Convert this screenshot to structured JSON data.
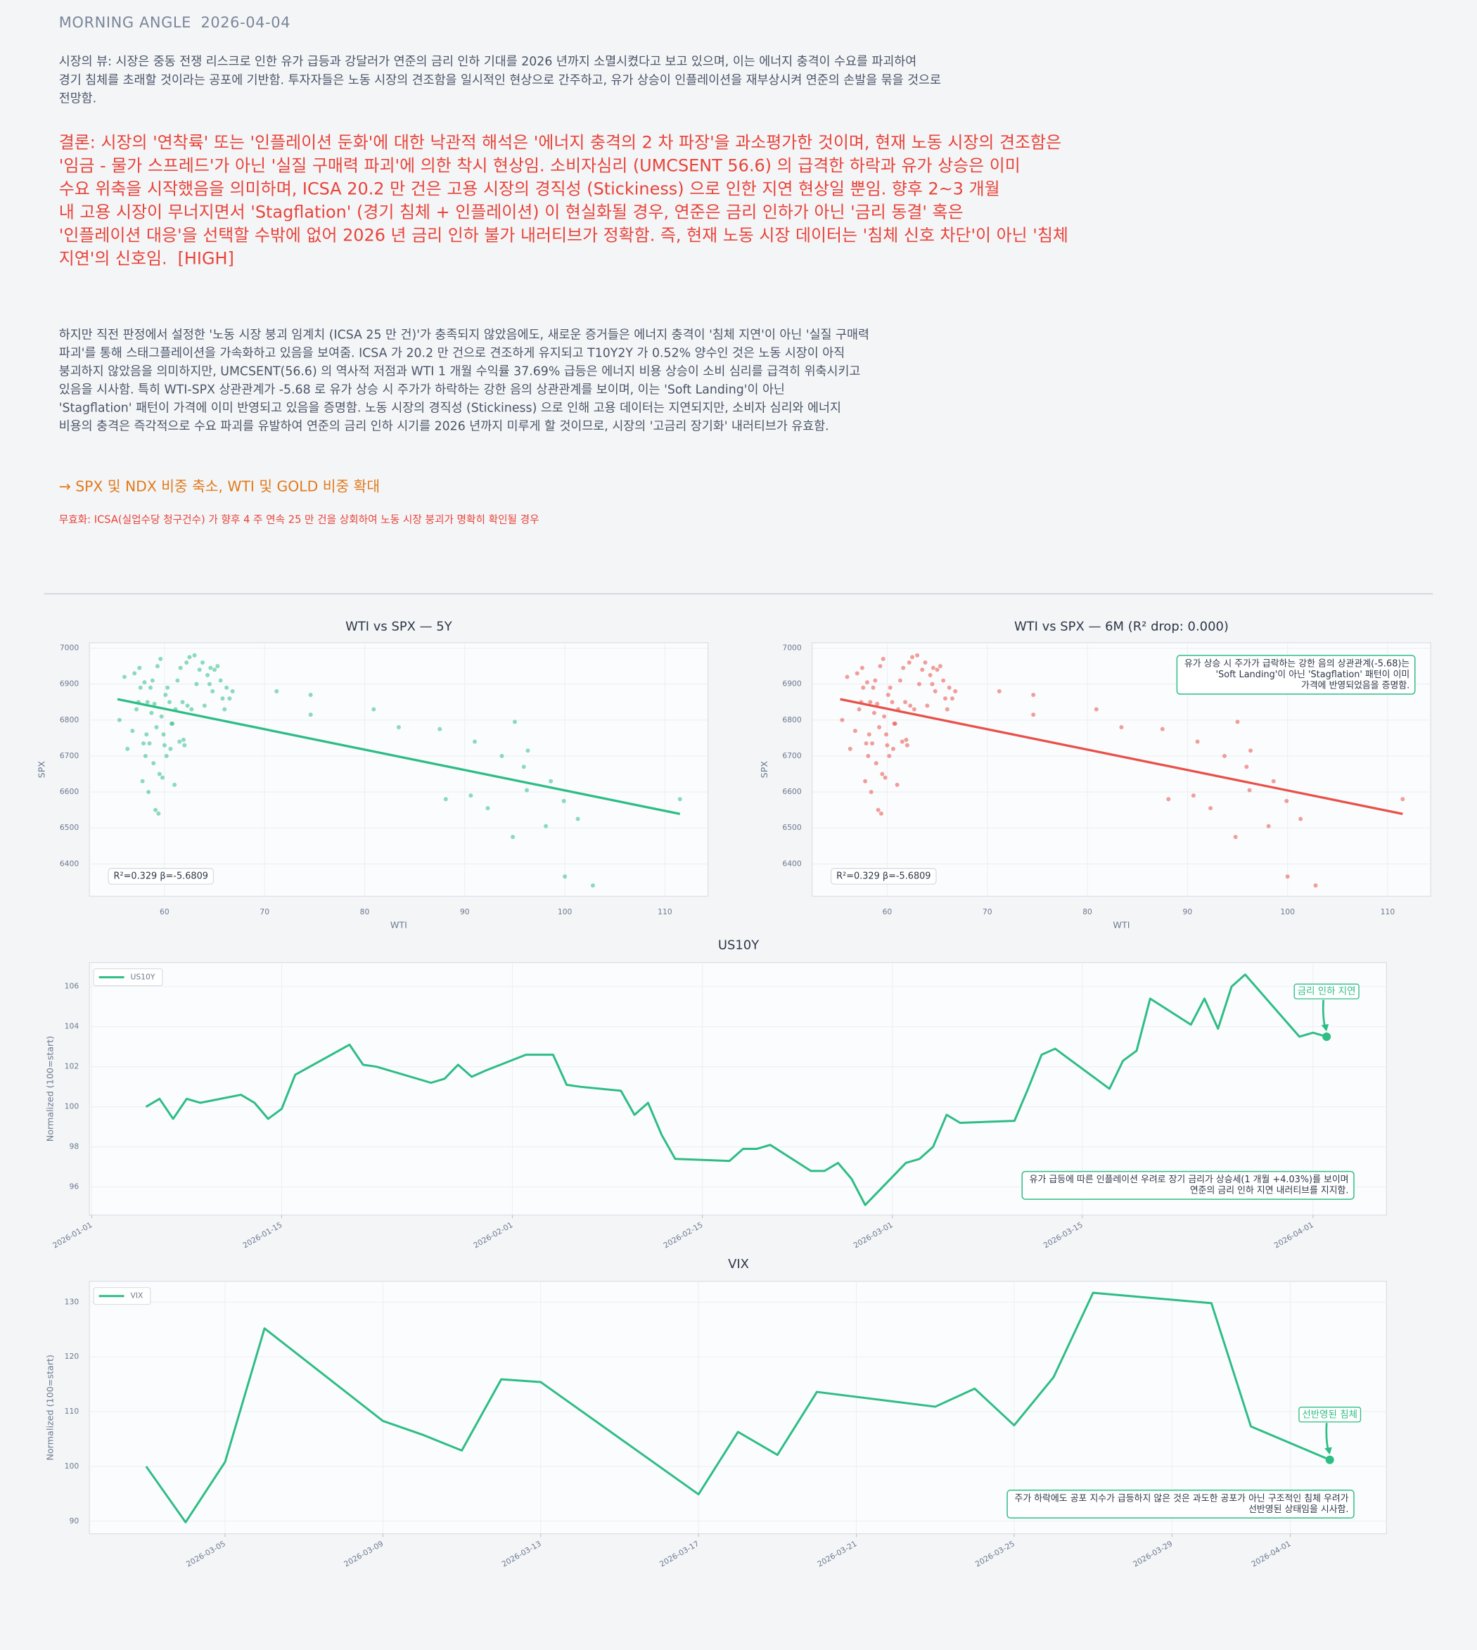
{
  "header": {
    "title": "MORNING ANGLE",
    "date": "2026-04-04"
  },
  "view": [
    "시장의 뷰: 시장은 중동 전쟁 리스크로 인한 유가 급등과 강달러가 연준의 금리 인하 기대를 2026 년까지 소멸시켰다고 보고 있으며, 이는 에너지 충격이 수요를 파괴하여",
    "경기 침체를 초래할 것이라는 공포에 기반함. 투자자들은 노동 시장의 견조함을 일시적인 현상으로 간주하고, 유가 상승이 인플레이션을 재부상시켜 연준의 손발을 묶을 것으로",
    "전망함."
  ],
  "conclusion": {
    "lines": [
      "결론: 시장의 '연착륙' 또는 '인플레이션 둔화'에 대한 낙관적 해석은 '에너지 충격의 2 차 파장'을 과소평가한 것이며, 현재 노동 시장의 견조함은",
      "'임금 - 물가 스프레드'가 아닌 '실질 구매력 파괴'에 의한 착시 현상임. 소비자심리 (UMCSENT 56.6) 의 급격한 하락과 유가 상승은 이미",
      "수요 위축을 시작했음을 의미하며, ICSA 20.2 만 건은 고용 시장의 경직성 (Stickiness) 으로 인한 지연 현상일 뿐임. 향후 2~3 개월",
      "내 고용 시장이 무너지면서 'Stagflation' (경기 침체 + 인플레이션) 이 현실화될 경우, 연준은 금리 인하가 아닌 '금리 동결' 혹은",
      "'인플레이션 대응'을 선택할 수밖에 없어 2026 년 금리 인하 불가 내러티브가 정확함. 즉, 현재 노동 시장 데이터는 '침체 신호 차단'이 아닌 '침체",
      "지연'의 신호임."
    ],
    "confidence": "[HIGH]"
  },
  "analysis": [
    "하지만 직전 판정에서 설정한 '노동 시장 붕괴 임계치 (ICSA 25 만 건)'가 충족되지 않았음에도, 새로운 증거들은 에너지 충격이 '침체 지연'이 아닌 '실질 구매력",
    "파괴'를 통해 스태그플레이션을 가속화하고 있음을 보여줌. ICSA 가 20.2 만 건으로 견조하게 유지되고 T10Y2Y 가 0.52% 양수인 것은 노동 시장이 아직",
    "붕괴하지 않았음을 의미하지만, UMCSENT(56.6) 의 역사적 저점과 WTI 1 개월 수익률 37.69% 급등은 에너지 비용 상승이 소비 심리를 급격히 위축시키고",
    "있음을 시사함. 특히 WTI-SPX 상관관계가 -5.68 로 유가 상승 시 주가가 하락하는 강한 음의 상관관계를 보이며, 이는 'Soft Landing'이 아닌",
    "'Stagflation' 패턴이 가격에 이미 반영되고 있음을 증명함. 노동 시장의 경직성 (Stickiness) 으로 인해 고용 데이터는 지연되지만, 소비자 심리와 에너지",
    "비용의 충격은 즉각적으로 수요 파괴를 유발하여 연준의 금리 인하 시기를 2026 년까지 미루게 할 것이므로, 시장의 '고금리 장기화' 내러티브가 유효함."
  ],
  "action": "→ SPX 및 NDX 비중 축소, WTI 및 GOLD 비중 확대",
  "invalidation": "무효화: ICSA(실업수당 청구건수) 가 향후 4 주 연속 25 만 건을 상회하여 노동 시장 붕괴가 명확히 확인될 경우",
  "chart_data": [
    {
      "type": "scatter",
      "title": "WTI vs SPX — 5Y",
      "xlabel": "WTI",
      "ylabel": "SPX",
      "xlim": [
        52.5,
        114.3
      ],
      "ylim": [
        6310,
        7015
      ],
      "xticks": [
        60,
        70,
        80,
        90,
        100,
        110
      ],
      "yticks": [
        6400,
        6500,
        6600,
        6700,
        6800,
        6900,
        7000
      ],
      "grid": true,
      "color": "#2dbd85",
      "x": [
        55.5,
        56,
        56.3,
        56.8,
        57,
        57.2,
        57.5,
        57.6,
        57.8,
        57.9,
        58,
        58.1,
        58.3,
        58.4,
        58.5,
        58.6,
        58.7,
        58.8,
        58.9,
        59,
        59.1,
        59.2,
        59.3,
        59.4,
        59.5,
        59.6,
        59.7,
        59.8,
        60,
        60.1,
        60.3,
        60.5,
        60.6,
        60.8,
        61,
        61.1,
        61.3,
        61.5,
        61.6,
        61.8,
        62,
        62.2,
        62.5,
        62.7,
        63,
        63.2,
        63.5,
        63.8,
        64,
        64.3,
        64.6,
        64.8,
        65,
        65.3,
        65.6,
        65.8,
        66,
        66.2,
        66.5,
        66.8,
        60.2,
        58.2,
        59.9,
        61.9,
        62.3,
        57.4,
        64.5,
        60.7,
        71.2,
        74.6,
        74.6,
        80.9,
        83.4,
        87.5,
        88.1,
        90.6,
        91,
        92.3,
        93.7,
        94.8,
        95,
        95.9,
        96.2,
        96.3,
        98.1,
        98.6,
        99.9,
        100,
        101.3,
        102.8,
        111.5
      ],
      "y": [
        6800,
        6920,
        6720,
        6770,
        6930,
        6830,
        6945,
        6890,
        6630,
        6735,
        6905,
        6700,
        6850,
        6600,
        6735,
        6890,
        6820,
        6910,
        6680,
        6845,
        6550,
        6780,
        6950,
        6540,
        6650,
        6970,
        6810,
        6640,
        6730,
        6870,
        6890,
        6850,
        6720,
        6790,
        6620,
        6830,
        6910,
        6740,
        6945,
        6850,
        6730,
        6960,
        6975,
        6830,
        6980,
        6900,
        6940,
        6960,
        6840,
        6925,
        6945,
        6880,
        6940,
        6950,
        6910,
        6860,
        6830,
        6890,
        6860,
        6880,
        6700,
        6760,
        6760,
        6745,
        6840,
        6850,
        6900,
        6790,
        6880,
        6870,
        6815,
        6830,
        6780,
        6775,
        6580,
        6590,
        6740,
        6555,
        6700,
        6475,
        6795,
        6670,
        6605,
        6715,
        6505,
        6630,
        6575,
        6365,
        6525,
        6340,
        6580
      ],
      "trend_x": [
        55.3,
        111.5
      ],
      "trend_y": [
        6858,
        6539
      ],
      "stat_label": "R²=0.329  β=-5.6809"
    },
    {
      "type": "scatter",
      "title": "WTI vs SPX — 6M (R² drop: 0.000)",
      "xlabel": "WTI",
      "ylabel": "SPX",
      "xlim": [
        52.5,
        114.3
      ],
      "ylim": [
        6310,
        7015
      ],
      "xticks": [
        60,
        70,
        80,
        90,
        100,
        110
      ],
      "yticks": [
        6400,
        6500,
        6600,
        6700,
        6800,
        6900,
        7000
      ],
      "grid": true,
      "color": "#e8514a",
      "x": [
        55.5,
        56,
        56.3,
        56.8,
        57,
        57.2,
        57.5,
        57.6,
        57.8,
        57.9,
        58,
        58.1,
        58.3,
        58.4,
        58.5,
        58.6,
        58.7,
        58.8,
        58.9,
        59,
        59.1,
        59.2,
        59.3,
        59.4,
        59.5,
        59.6,
        59.7,
        59.8,
        60,
        60.1,
        60.3,
        60.5,
        60.6,
        60.8,
        61,
        61.1,
        61.3,
        61.5,
        61.6,
        61.8,
        62,
        62.2,
        62.5,
        62.7,
        63,
        63.2,
        63.5,
        63.8,
        64,
        64.3,
        64.6,
        64.8,
        65,
        65.3,
        65.6,
        65.8,
        66,
        66.2,
        66.5,
        66.8,
        60.2,
        58.2,
        59.9,
        61.9,
        62.3,
        57.4,
        64.5,
        60.7,
        71.2,
        74.6,
        74.6,
        80.9,
        83.4,
        87.5,
        88.1,
        90.6,
        91,
        92.3,
        93.7,
        94.8,
        95,
        95.9,
        96.2,
        96.3,
        98.1,
        98.6,
        99.9,
        100,
        101.3,
        102.8,
        111.5
      ],
      "y": [
        6800,
        6920,
        6720,
        6770,
        6930,
        6830,
        6945,
        6890,
        6630,
        6735,
        6905,
        6700,
        6850,
        6600,
        6735,
        6890,
        6820,
        6910,
        6680,
        6845,
        6550,
        6780,
        6950,
        6540,
        6650,
        6970,
        6810,
        6640,
        6730,
        6870,
        6890,
        6850,
        6720,
        6790,
        6620,
        6830,
        6910,
        6740,
        6945,
        6850,
        6730,
        6960,
        6975,
        6830,
        6980,
        6900,
        6940,
        6960,
        6840,
        6925,
        6945,
        6880,
        6940,
        6950,
        6910,
        6860,
        6830,
        6890,
        6860,
        6880,
        6700,
        6760,
        6760,
        6745,
        6840,
        6850,
        6900,
        6790,
        6880,
        6870,
        6815,
        6830,
        6780,
        6775,
        6580,
        6590,
        6740,
        6555,
        6700,
        6475,
        6795,
        6670,
        6605,
        6715,
        6505,
        6630,
        6575,
        6365,
        6525,
        6340,
        6580
      ],
      "trend_x": [
        55.3,
        111.5
      ],
      "trend_y": [
        6858,
        6539
      ],
      "stat_label": "R²=0.329  β=-5.6809",
      "note": [
        "유가 상승 시 주가가 급락하는 강한 음의 상관관계(-5.68)는",
        "'Soft Landing'이 아닌 'Stagflation' 패턴이 이미",
        "가격에 반영되었음을 증명함."
      ]
    },
    {
      "type": "line",
      "title": "US10Y",
      "ylabel": "Normalized (100=start)",
      "xlim": [
        "2025-12-31T20:00:00Z",
        "2026-04-06T10:00:00Z"
      ],
      "xticks": [
        "2026-01-01",
        "2026-01-15",
        "2026-02-01",
        "2026-02-15",
        "2026-03-01",
        "2026-03-15",
        "2026-04-01"
      ],
      "ylim": [
        94.6,
        107.2
      ],
      "yticks": [
        96,
        98,
        100,
        102,
        104,
        106
      ],
      "grid": true,
      "legend": "upper-left",
      "x": [
        "2026-01-05",
        "2026-01-06",
        "2026-01-07",
        "2026-01-08",
        "2026-01-09",
        "2026-01-12",
        "2026-01-13",
        "2026-01-14",
        "2026-01-15",
        "2026-01-16",
        "2026-01-20",
        "2026-01-21",
        "2026-01-22",
        "2026-01-23",
        "2026-01-26",
        "2026-01-27",
        "2026-01-28",
        "2026-01-29",
        "2026-01-30",
        "2026-02-02",
        "2026-02-03",
        "2026-02-04",
        "2026-02-05",
        "2026-02-06",
        "2026-02-09",
        "2026-02-10",
        "2026-02-11",
        "2026-02-12",
        "2026-02-13",
        "2026-02-17",
        "2026-02-18",
        "2026-02-19",
        "2026-02-20",
        "2026-02-23",
        "2026-02-24",
        "2026-02-25",
        "2026-02-26",
        "2026-02-27",
        "2026-03-02",
        "2026-03-03",
        "2026-03-04",
        "2026-03-05",
        "2026-03-06",
        "2026-03-10",
        "2026-03-11",
        "2026-03-12",
        "2026-03-13",
        "2026-03-17",
        "2026-03-18",
        "2026-03-19",
        "2026-03-20",
        "2026-03-23",
        "2026-03-24",
        "2026-03-25",
        "2026-03-26",
        "2026-03-27",
        "2026-03-31",
        "2026-04-01",
        "2026-04-02"
      ],
      "series": [
        {
          "name": "US10Y",
          "color": "#2dbd85",
          "values": [
            100.0,
            100.4,
            99.4,
            100.4,
            100.2,
            100.6,
            100.2,
            99.4,
            99.9,
            101.6,
            103.1,
            102.1,
            102.0,
            101.8,
            101.2,
            101.4,
            102.1,
            101.5,
            101.8,
            102.6,
            102.6,
            102.6,
            101.1,
            101.0,
            100.8,
            99.6,
            100.2,
            98.6,
            97.4,
            97.3,
            97.9,
            97.9,
            98.1,
            96.8,
            96.8,
            97.2,
            96.4,
            95.1,
            97.2,
            97.4,
            98.0,
            99.6,
            99.2,
            99.3,
            100.9,
            102.6,
            102.9,
            100.9,
            102.3,
            102.8,
            105.4,
            104.1,
            105.4,
            103.9,
            106.0,
            106.6,
            103.5,
            103.7,
            103.5
          ]
        }
      ],
      "callout": "금리 인하 지연",
      "note": [
        "유가 급등에 따른 인플레이션 우려로 장기 금리가 상승세(1 개월 +4.03%)를 보이며",
        "연준의 금리 인하 지연 내러티브를 지지함."
      ]
    },
    {
      "type": "line",
      "title": "VIX",
      "ylabel": "Normalized (100=start)",
      "xlim": [
        "2026-03-01T13:30:00Z",
        "2026-04-03T10:30:00Z"
      ],
      "xticks": [
        "2026-03-05",
        "2026-03-09",
        "2026-03-13",
        "2026-03-17",
        "2026-03-21",
        "2026-03-25",
        "2026-03-29",
        "2026-04-01"
      ],
      "ylim": [
        87.7,
        133.8
      ],
      "yticks": [
        90,
        100,
        110,
        120,
        130
      ],
      "grid": true,
      "legend": "upper-left",
      "x": [
        "2026-03-03",
        "2026-03-04",
        "2026-03-05",
        "2026-03-06",
        "2026-03-09",
        "2026-03-10",
        "2026-03-11",
        "2026-03-12",
        "2026-03-13",
        "2026-03-17",
        "2026-03-18",
        "2026-03-19",
        "2026-03-20",
        "2026-03-23",
        "2026-03-24",
        "2026-03-25",
        "2026-03-26",
        "2026-03-27",
        "2026-03-30",
        "2026-03-31",
        "2026-04-02"
      ],
      "series": [
        {
          "name": "VIX",
          "color": "#2dbd85",
          "values": [
            100.0,
            89.8,
            100.8,
            125.2,
            108.3,
            105.8,
            102.9,
            115.9,
            115.4,
            94.9,
            106.3,
            102.1,
            113.6,
            110.9,
            114.2,
            107.5,
            116.3,
            131.7,
            129.8,
            107.3,
            101.2
          ]
        }
      ],
      "callout": "선반영된 침체",
      "note": [
        "주가 하락에도 공포 지수가 급등하지 않은 것은 과도한 공포가 아닌 구조적인 침체 우려가",
        "선반영된 상태임을 시사함."
      ]
    }
  ]
}
